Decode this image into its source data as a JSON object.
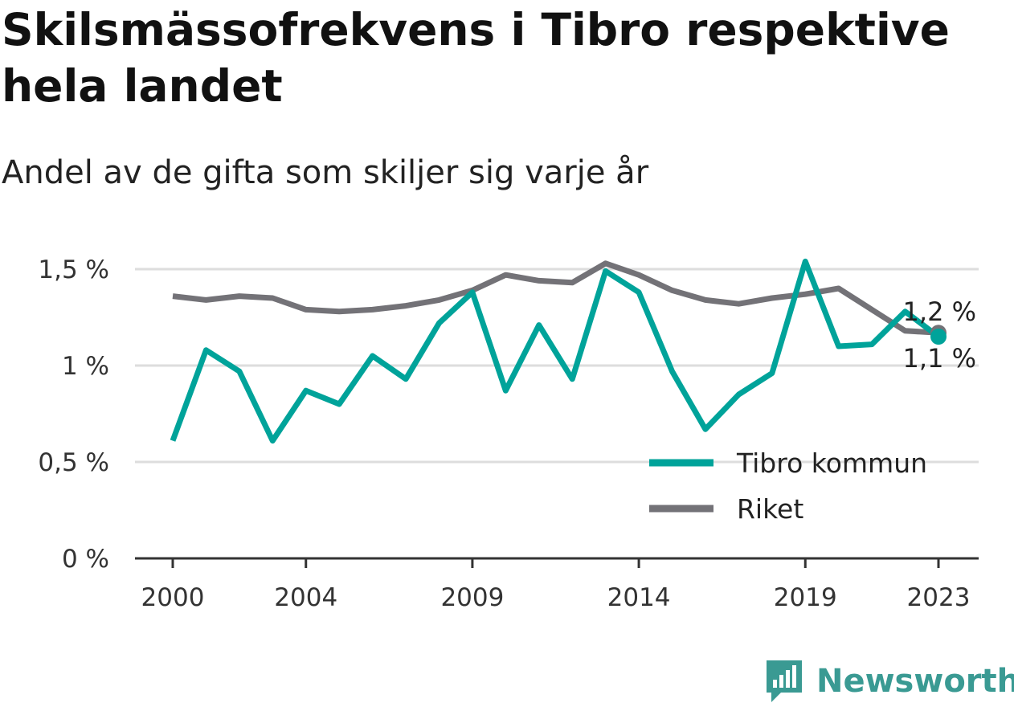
{
  "colors": {
    "tibro": "#00a39a",
    "riket": "#737277",
    "grid": "#dddddd",
    "axis": "#333333",
    "brand": "#3a9a93"
  },
  "chart_data": {
    "type": "line",
    "title": "Skilsmässofrekvens i Tibro respektive hela landet",
    "subtitle": "Andel av de gifta som skiljer sig varje år",
    "x": [
      2000,
      2001,
      2002,
      2003,
      2004,
      2005,
      2006,
      2007,
      2008,
      2009,
      2010,
      2011,
      2012,
      2013,
      2014,
      2015,
      2016,
      2017,
      2018,
      2019,
      2020,
      2021,
      2022,
      2023
    ],
    "x_ticks": [
      2000,
      2004,
      2009,
      2014,
      2019,
      2023
    ],
    "y_ticks": [
      0,
      0.5,
      1,
      1.5
    ],
    "y_tick_labels": [
      "0 %",
      "0,5 %",
      "1 %",
      "1,5 %"
    ],
    "ylim": [
      0,
      1.5
    ],
    "grid": true,
    "legend_position": "bottom-right",
    "series": [
      {
        "name": "Tibro kommun",
        "color_key": "tibro",
        "values": [
          0.61,
          1.08,
          0.97,
          0.61,
          0.87,
          0.8,
          1.05,
          0.93,
          1.22,
          1.38,
          0.87,
          1.21,
          0.93,
          1.49,
          1.38,
          0.97,
          0.67,
          0.85,
          0.96,
          1.54,
          1.1,
          1.11,
          1.28,
          1.15
        ],
        "end_label": "1,1 %"
      },
      {
        "name": "Riket",
        "color_key": "riket",
        "values": [
          1.36,
          1.34,
          1.36,
          1.35,
          1.29,
          1.28,
          1.29,
          1.31,
          1.34,
          1.39,
          1.47,
          1.44,
          1.43,
          1.53,
          1.47,
          1.39,
          1.34,
          1.32,
          1.35,
          1.37,
          1.4,
          1.29,
          1.18,
          1.17
        ],
        "end_label": "1,2 %"
      }
    ]
  },
  "brand": {
    "name": "Newsworthy",
    "icon": "newsworthy-logo-icon"
  }
}
